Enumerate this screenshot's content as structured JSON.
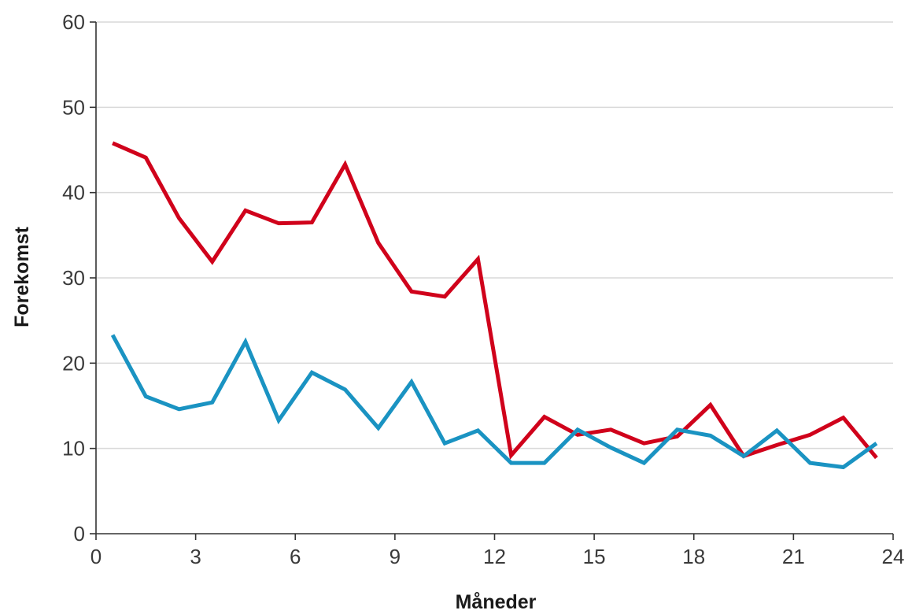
{
  "chart_data": {
    "type": "line",
    "title": "",
    "xlabel": "Måneder",
    "ylabel": "Forekomst",
    "xlim": [
      0,
      24
    ],
    "ylim": [
      0,
      60
    ],
    "xticks": [
      0,
      3,
      6,
      9,
      12,
      15,
      18,
      21,
      24
    ],
    "yticks": [
      0,
      10,
      20,
      30,
      40,
      50,
      60
    ],
    "grid": "horizontal",
    "legend": "none",
    "x": [
      0.5,
      1.5,
      2.5,
      3.5,
      4.5,
      5.5,
      6.5,
      7.5,
      8.5,
      9.5,
      10.5,
      11.5,
      12.5,
      13.5,
      14.5,
      15.5,
      16.5,
      17.5,
      18.5,
      19.5,
      20.5,
      21.5,
      22.5,
      23.5
    ],
    "series": [
      {
        "color": "#d0021b",
        "values": [
          45.8,
          44.1,
          37.0,
          31.9,
          37.9,
          36.4,
          36.5,
          43.3,
          34.1,
          28.4,
          27.8,
          32.2,
          9.2,
          13.7,
          11.6,
          12.2,
          10.6,
          11.4,
          15.1,
          9.1,
          10.4,
          11.6,
          13.6,
          8.9
        ]
      },
      {
        "color": "#1a93c2",
        "values": [
          23.3,
          16.1,
          14.6,
          15.4,
          22.5,
          13.3,
          18.9,
          16.9,
          12.4,
          17.8,
          10.6,
          12.1,
          8.3,
          8.3,
          12.2,
          10.1,
          8.3,
          12.2,
          11.5,
          9.1,
          12.1,
          8.3,
          7.8,
          10.6
        ]
      }
    ]
  }
}
